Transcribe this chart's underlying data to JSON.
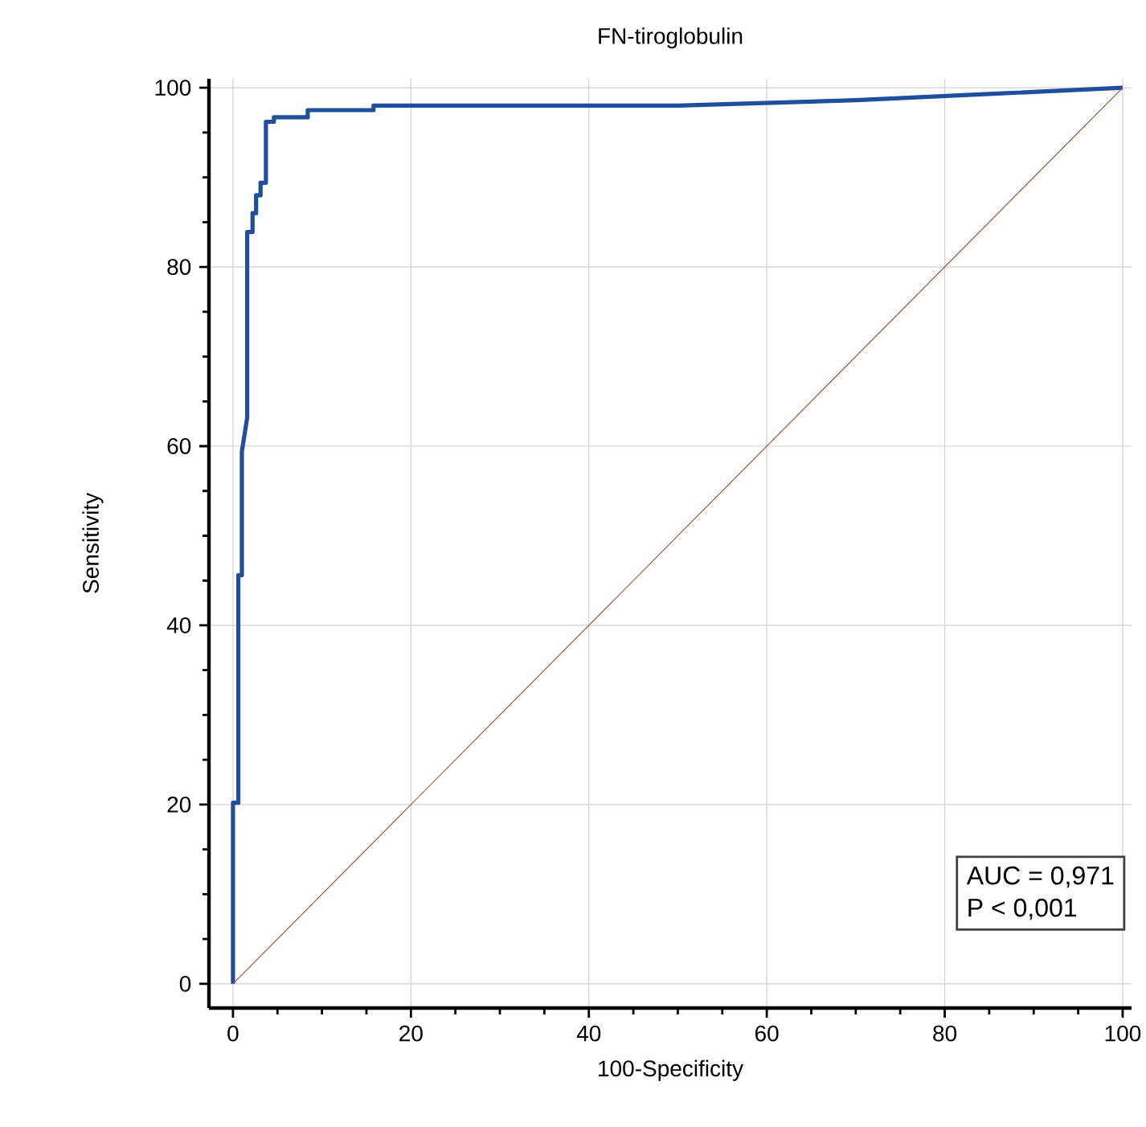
{
  "chart_data": {
    "type": "line",
    "title": "FN-tiroglobulin",
    "xlabel": "100-Specificity",
    "ylabel": "Sensitivity",
    "series": [
      {
        "color": "#1f4f9c",
        "x": [
          0,
          0,
          0.6,
          0.6,
          1.0,
          1.0,
          1.6,
          1.6,
          2.2,
          2.2,
          2.6,
          2.6,
          3.1,
          3.1,
          3.7,
          3.7,
          4.6,
          4.6,
          8.4,
          8.4,
          15.8,
          15.8,
          50,
          70,
          85,
          100
        ],
        "values": [
          0,
          20.2,
          20.2,
          45.6,
          45.6,
          59.4,
          63.2,
          83.9,
          83.9,
          86,
          86,
          88,
          88,
          89.4,
          89.4,
          96.2,
          96.2,
          96.7,
          96.7,
          97.5,
          97.5,
          98,
          98,
          98.6,
          99.3,
          100
        ]
      },
      {
        "color": "#a0523a",
        "x": [
          0,
          100
        ],
        "values": [
          0,
          100
        ]
      }
    ],
    "xlim": [
      -2.7,
      101
    ],
    "ylim": [
      -2.7,
      101
    ],
    "xticks": [
      0,
      20,
      40,
      60,
      80,
      100
    ],
    "yticks": [
      0,
      20,
      40,
      60,
      80,
      100
    ],
    "grid": true,
    "annotations": [
      "AUC = 0,971",
      "P < 0,001"
    ]
  }
}
